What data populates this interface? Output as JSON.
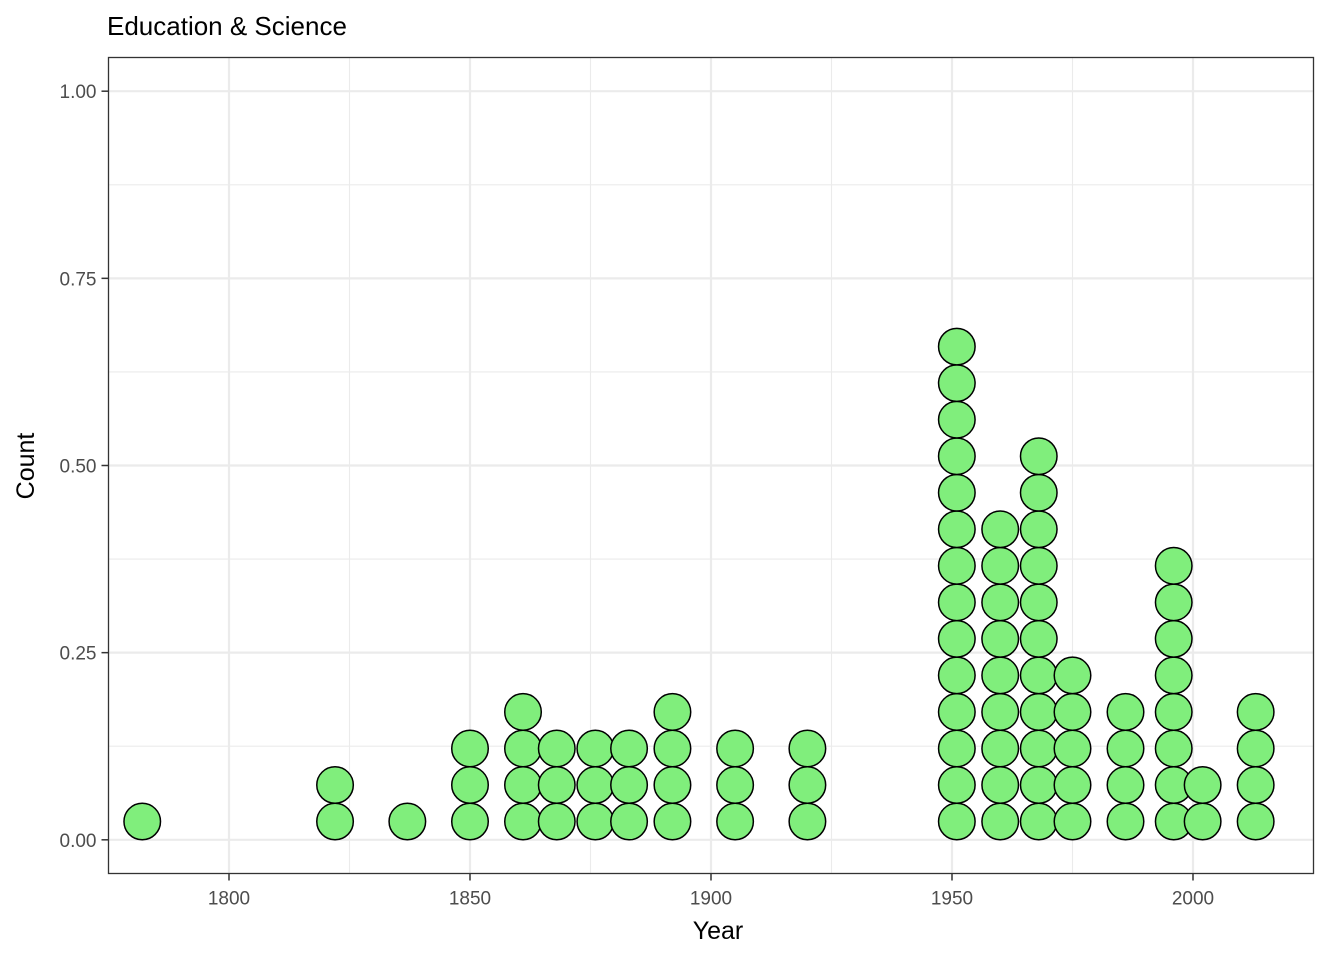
{
  "chart_data": {
    "type": "scatter",
    "subtype": "dotplot",
    "title": "Education & Science",
    "xlabel": "Year",
    "ylabel": "Count",
    "xlim": [
      1775,
      2025
    ],
    "ylim": [
      -0.045,
      1.045
    ],
    "x_ticks": [
      1800,
      1850,
      1900,
      1950,
      2000
    ],
    "x_tick_labels": [
      "1800",
      "1850",
      "1900",
      "1950",
      "2000"
    ],
    "y_ticks": [
      0,
      0.25,
      0.5,
      0.75,
      1.0
    ],
    "y_tick_labels": [
      "0.00",
      "0.25",
      "0.50",
      "0.75",
      "1.00"
    ],
    "grid": true,
    "dot_fill": "#80ee7c",
    "dot_stroke": "#000000",
    "stack_step": 0.0488,
    "stacks": [
      {
        "x": 1782,
        "count": 1
      },
      {
        "x": 1822,
        "count": 2
      },
      {
        "x": 1837,
        "count": 1
      },
      {
        "x": 1850,
        "count": 3
      },
      {
        "x": 1861,
        "count": 4
      },
      {
        "x": 1868,
        "count": 3
      },
      {
        "x": 1876,
        "count": 3
      },
      {
        "x": 1883,
        "count": 3
      },
      {
        "x": 1892,
        "count": 4
      },
      {
        "x": 1905,
        "count": 3
      },
      {
        "x": 1920,
        "count": 3
      },
      {
        "x": 1951,
        "count": 14
      },
      {
        "x": 1960,
        "count": 9
      },
      {
        "x": 1968,
        "count": 11
      },
      {
        "x": 1975,
        "count": 5
      },
      {
        "x": 1986,
        "count": 4
      },
      {
        "x": 1996,
        "count": 8
      },
      {
        "x": 2002,
        "count": 2
      },
      {
        "x": 2013,
        "count": 4
      }
    ]
  }
}
